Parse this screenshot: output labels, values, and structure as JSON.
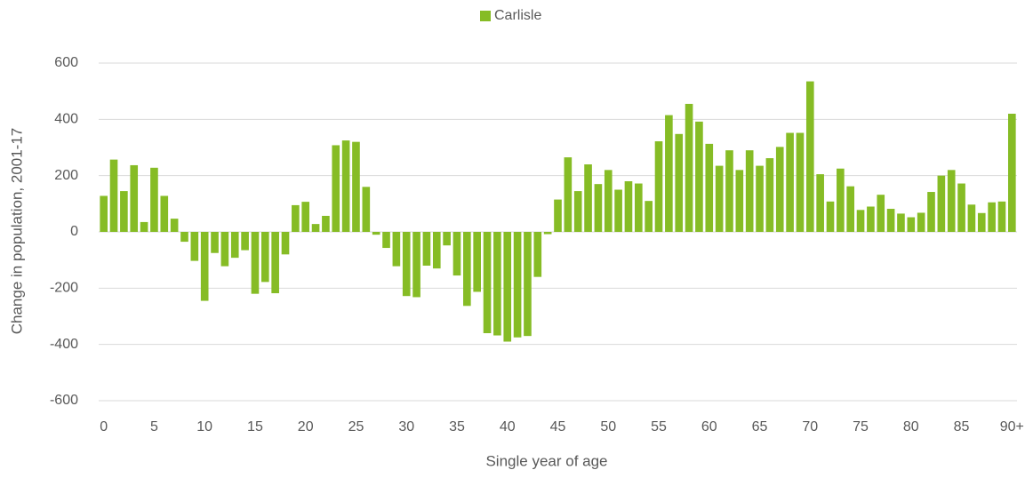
{
  "chart_data": {
    "type": "bar",
    "x_label": "Single year of age",
    "y_label": "Change in population, 2001-17",
    "categories": [
      "0",
      null,
      null,
      null,
      null,
      "5",
      null,
      null,
      null,
      null,
      "10",
      null,
      null,
      null,
      null,
      "15",
      null,
      null,
      null,
      null,
      "20",
      null,
      null,
      null,
      null,
      "25",
      null,
      null,
      null,
      null,
      "30",
      null,
      null,
      null,
      null,
      "35",
      null,
      null,
      null,
      null,
      "40",
      null,
      null,
      null,
      null,
      "45",
      null,
      null,
      null,
      null,
      "50",
      null,
      null,
      null,
      null,
      "55",
      null,
      null,
      null,
      null,
      "60",
      null,
      null,
      null,
      null,
      "65",
      null,
      null,
      null,
      null,
      "70",
      null,
      null,
      null,
      null,
      "75",
      null,
      null,
      null,
      null,
      "80",
      null,
      null,
      null,
      null,
      "85",
      null,
      null,
      null,
      null,
      "90+"
    ],
    "series": [
      {
        "name": "Carlisle",
        "color": "#86bc25",
        "values": [
          128,
          257,
          145,
          237,
          35,
          228,
          128,
          47,
          -35,
          -103,
          -245,
          -75,
          -122,
          -92,
          -65,
          -220,
          -178,
          -218,
          -80,
          95,
          107,
          28,
          57,
          308,
          325,
          320,
          160,
          -10,
          -57,
          -122,
          -228,
          -232,
          -120,
          -130,
          -48,
          -155,
          -263,
          -213,
          -360,
          -368,
          -390,
          -375,
          -370,
          -160,
          -8,
          115,
          265,
          145,
          240,
          170,
          220,
          150,
          180,
          172,
          110,
          322,
          415,
          348,
          455,
          392,
          313,
          235,
          290,
          220,
          290,
          235,
          262,
          302,
          352,
          352,
          535,
          205,
          108,
          225,
          162,
          78,
          90,
          132,
          82,
          65,
          52,
          68,
          142,
          200,
          220,
          172,
          97,
          67,
          105,
          108,
          420
        ]
      }
    ],
    "ylim": [
      -600,
      600
    ],
    "yticks": [
      -600,
      -400,
      -200,
      0,
      200,
      400,
      600
    ],
    "grid": true,
    "legend": "top"
  }
}
